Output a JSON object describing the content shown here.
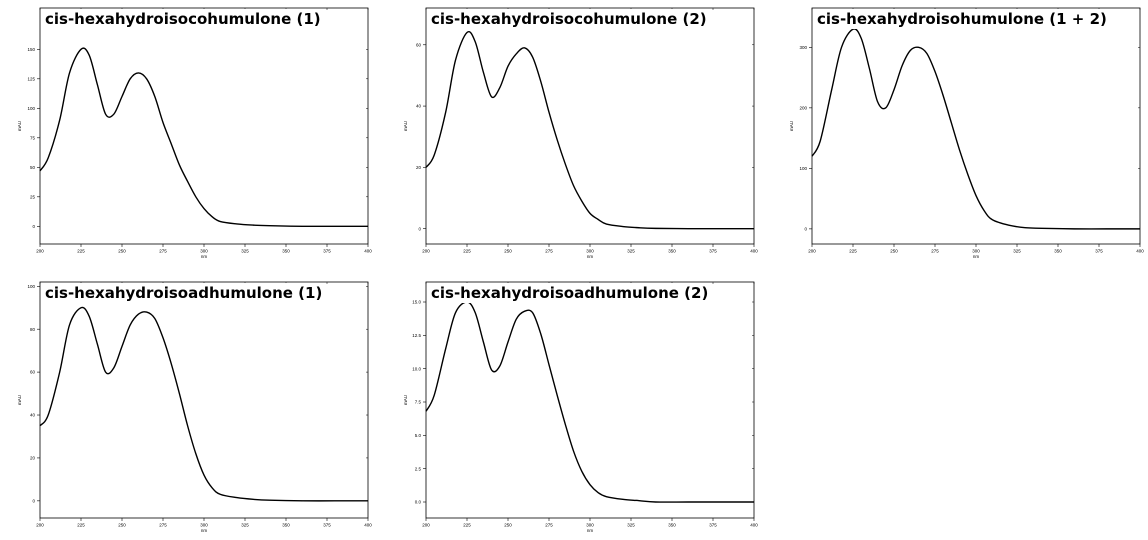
{
  "chart_data": [
    {
      "type": "line",
      "title": "cis-hexahydroisocohumulone (1)",
      "xlabel": "nm",
      "ylabel": "mAU",
      "xlim": [
        200,
        400
      ],
      "ylim": [
        -15,
        185
      ],
      "xticks": [
        "200",
        "225",
        "250",
        "275",
        "300",
        "325",
        "350",
        "375",
        "400"
      ],
      "yticks": [
        "0",
        "25",
        "50",
        "75",
        "100",
        "125",
        "150"
      ],
      "x": [
        200,
        205,
        212,
        218,
        225,
        230,
        235,
        240,
        245,
        250,
        255,
        260,
        265,
        270,
        275,
        280,
        285,
        290,
        295,
        300,
        305,
        310,
        320,
        330,
        340,
        360,
        380,
        400
      ],
      "series": [
        {
          "values": [
            47,
            58,
            90,
            130,
            150,
            145,
            120,
            95,
            95,
            110,
            125,
            130,
            125,
            110,
            88,
            70,
            52,
            38,
            25,
            15,
            8,
            4,
            2,
            1,
            0.5,
            0,
            0,
            0
          ]
        }
      ]
    },
    {
      "type": "line",
      "title": "cis-hexahydroisocohumulone (2)",
      "xlabel": "nm",
      "ylabel": "mAU",
      "xlim": [
        200,
        400
      ],
      "ylim": [
        -5,
        72
      ],
      "xticks": [
        "200",
        "225",
        "250",
        "275",
        "300",
        "325",
        "350",
        "375",
        "400"
      ],
      "yticks": [
        "0",
        "20",
        "40",
        "60"
      ],
      "x": [
        200,
        205,
        212,
        218,
        225,
        230,
        235,
        240,
        245,
        250,
        255,
        260,
        265,
        270,
        275,
        280,
        285,
        290,
        295,
        300,
        305,
        310,
        320,
        330,
        340,
        360,
        380,
        400
      ],
      "series": [
        {
          "values": [
            20,
            24,
            38,
            55,
            64,
            61,
            51,
            43,
            46,
            53,
            57,
            59,
            56,
            48,
            38,
            29,
            21,
            14,
            9,
            5,
            3,
            1.5,
            0.7,
            0.3,
            0.1,
            0,
            0,
            0
          ]
        }
      ]
    },
    {
      "type": "line",
      "title": "cis-hexahydroisohumulone (1 + 2)",
      "xlabel": "nm",
      "ylabel": "mAU",
      "xlim": [
        200,
        400
      ],
      "ylim": [
        -25,
        365
      ],
      "xticks": [
        "200",
        "225",
        "250",
        "275",
        "300",
        "325",
        "350",
        "375",
        "400"
      ],
      "yticks": [
        "0",
        "100",
        "200",
        "300"
      ],
      "x": [
        200,
        205,
        212,
        218,
        225,
        230,
        235,
        240,
        245,
        250,
        255,
        260,
        265,
        270,
        275,
        280,
        285,
        290,
        295,
        300,
        305,
        310,
        320,
        330,
        340,
        360,
        380,
        400
      ],
      "series": [
        {
          "values": [
            120,
            145,
            230,
            300,
            330,
            315,
            265,
            210,
            200,
            230,
            270,
            295,
            300,
            290,
            260,
            220,
            175,
            130,
            90,
            55,
            30,
            15,
            6,
            2,
            1,
            0,
            0,
            0
          ]
        }
      ]
    },
    {
      "type": "line",
      "title": "cis-hexahydroisoadhumulone (1)",
      "xlabel": "nm",
      "ylabel": "mAU",
      "xlim": [
        200,
        400
      ],
      "ylim": [
        -8,
        102
      ],
      "xticks": [
        "200",
        "225",
        "250",
        "275",
        "300",
        "325",
        "350",
        "375",
        "400"
      ],
      "yticks": [
        "0",
        "20",
        "40",
        "60",
        "80",
        "100"
      ],
      "x": [
        200,
        205,
        212,
        218,
        225,
        230,
        235,
        240,
        245,
        250,
        255,
        260,
        265,
        270,
        275,
        280,
        285,
        290,
        295,
        300,
        305,
        310,
        320,
        330,
        340,
        360,
        380,
        400
      ],
      "series": [
        {
          "values": [
            35,
            40,
            60,
            82,
            90,
            86,
            73,
            60,
            62,
            72,
            82,
            87,
            88,
            85,
            76,
            64,
            50,
            35,
            22,
            12,
            6,
            3,
            1.5,
            0.7,
            0.3,
            0,
            0,
            0
          ]
        }
      ]
    },
    {
      "type": "line",
      "title": "cis-hexahydroisoadhumulone (2)",
      "xlabel": "nm",
      "ylabel": "mAU",
      "xlim": [
        200,
        400
      ],
      "ylim": [
        -1.2,
        16.5
      ],
      "xticks": [
        "200",
        "225",
        "250",
        "275",
        "300",
        "325",
        "350",
        "375",
        "400"
      ],
      "yticks": [
        "0.0",
        "2.5",
        "5.0",
        "7.5",
        "10.0",
        "12.5",
        "15.0"
      ],
      "x": [
        200,
        205,
        212,
        218,
        225,
        230,
        235,
        240,
        245,
        250,
        255,
        260,
        265,
        270,
        275,
        280,
        285,
        290,
        295,
        300,
        305,
        310,
        320,
        330,
        340,
        360,
        380,
        400
      ],
      "series": [
        {
          "values": [
            6.8,
            8.0,
            11.5,
            14.2,
            15.0,
            14.2,
            12.0,
            9.9,
            10.2,
            12.0,
            13.7,
            14.3,
            14.2,
            12.6,
            10.3,
            8.0,
            5.8,
            3.8,
            2.3,
            1.3,
            0.7,
            0.4,
            0.2,
            0.1,
            0,
            0,
            0,
            0
          ]
        }
      ]
    }
  ]
}
